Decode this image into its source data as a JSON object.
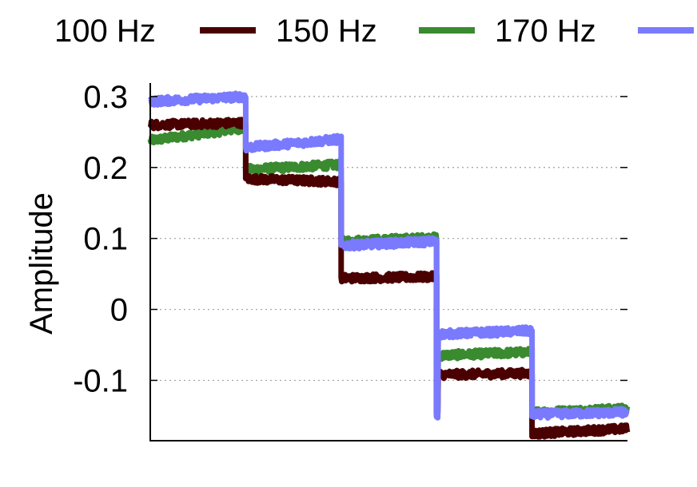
{
  "chart_data": {
    "type": "line",
    "title": "",
    "xlabel": "",
    "ylabel": "Amplitude",
    "ylim": [
      -0.185,
      0.31
    ],
    "xlim": [
      0,
      5
    ],
    "yticks": [
      {
        "value": 0.3,
        "label": "0.3"
      },
      {
        "value": 0.2,
        "label": "0.2"
      },
      {
        "value": 0.1,
        "label": "0.1"
      },
      {
        "value": 0,
        "label": "0"
      },
      {
        "value": -0.1,
        "label": "-0.1"
      }
    ],
    "grid": true,
    "legend_position": "top",
    "series": [
      {
        "name": "100 Hz",
        "color": "#4a0000",
        "segments": [
          {
            "x0": 0,
            "x1": 1,
            "y0": 0.26,
            "y1": 0.263
          },
          {
            "x0": 1,
            "x1": 2,
            "y0": 0.184,
            "y1": 0.18
          },
          {
            "x0": 2,
            "x1": 3,
            "y0": 0.044,
            "y1": 0.046
          },
          {
            "x0": 3,
            "x1": 4,
            "y0": -0.092,
            "y1": -0.09
          },
          {
            "x0": 4,
            "x1": 5,
            "y0": -0.175,
            "y1": -0.168
          }
        ]
      },
      {
        "name": "150 Hz",
        "color": "#3a8a30",
        "segments": [
          {
            "x0": 0,
            "x1": 1,
            "y0": 0.238,
            "y1": 0.256
          },
          {
            "x0": 1,
            "x1": 2,
            "y0": 0.197,
            "y1": 0.204
          },
          {
            "x0": 2,
            "x1": 3,
            "y0": 0.096,
            "y1": 0.101
          },
          {
            "x0": 3,
            "x1": 4,
            "y0": -0.065,
            "y1": -0.06
          },
          {
            "x0": 4,
            "x1": 5,
            "y0": -0.145,
            "y1": -0.14
          }
        ]
      },
      {
        "name": "170 Hz",
        "color": "#7a7aff",
        "segments": [
          {
            "x0": 0,
            "x1": 1,
            "y0": 0.293,
            "y1": 0.3
          },
          {
            "x0": 1,
            "x1": 2,
            "y0": 0.228,
            "y1": 0.24
          },
          {
            "x0": 2,
            "x1": 3,
            "y0": 0.09,
            "y1": 0.096
          },
          {
            "x0": 3,
            "x1": 4,
            "y0": -0.035,
            "y1": -0.03
          },
          {
            "x0": 4,
            "x1": 5,
            "y0": -0.148,
            "y1": -0.145
          }
        ]
      }
    ]
  }
}
